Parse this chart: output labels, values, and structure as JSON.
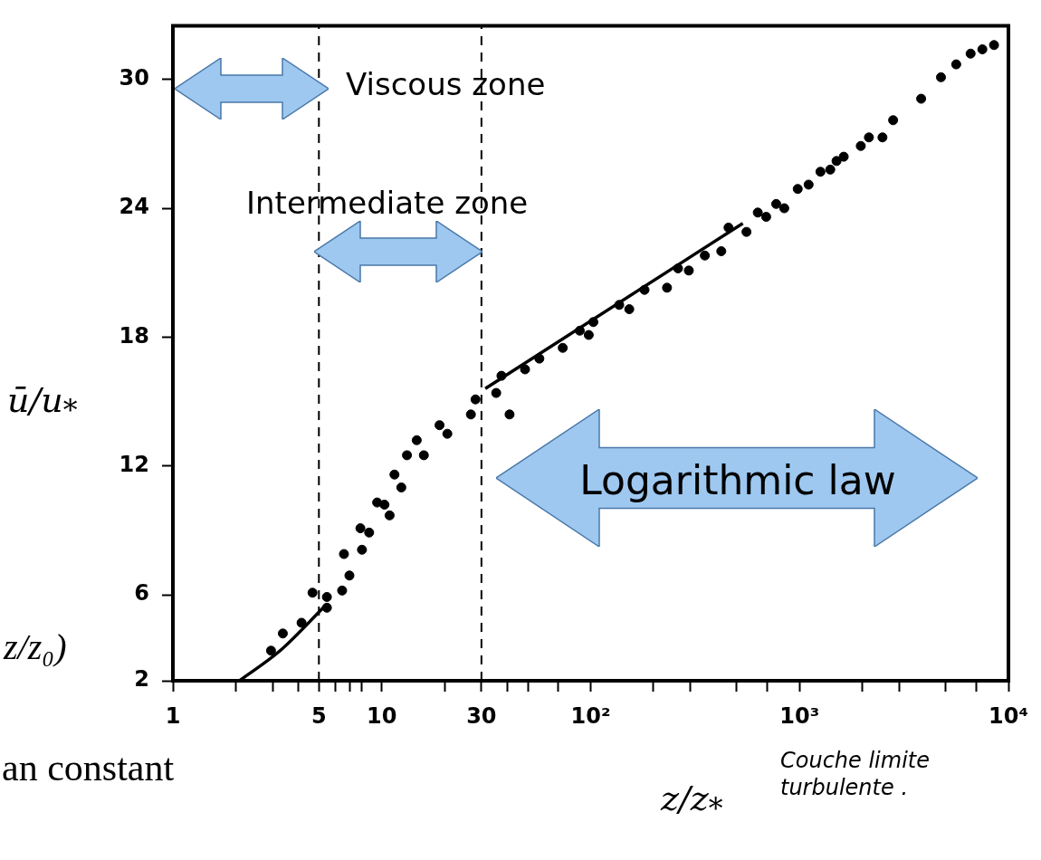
{
  "chart_data": {
    "type": "scatter",
    "xlabel": "z/z$_{*}$",
    "ylabel": "ū/u$_{*}$",
    "log": "x",
    "grid": false,
    "legend": false,
    "xlim": [
      1,
      10000
    ],
    "ylim": [
      2,
      32.5
    ],
    "xticks": [
      1,
      {
        "value": 2,
        "label": null
      },
      {
        "value": 3,
        "label": null
      },
      {
        "value": 4,
        "label": null
      },
      5,
      {
        "value": 6,
        "label": null
      },
      {
        "value": 7,
        "label": null
      },
      {
        "value": 8,
        "label": null
      },
      10,
      {
        "value": 20,
        "label": null
      },
      30,
      {
        "value": 40,
        "label": null
      },
      {
        "value": 50,
        "label": null
      },
      {
        "value": 70,
        "label": null
      },
      {
        "value": 100,
        "label": "10²"
      },
      {
        "value": 200,
        "label": null
      },
      {
        "value": 300,
        "label": null
      },
      {
        "value": 500,
        "label": null
      },
      {
        "value": 700,
        "label": null
      },
      {
        "value": 1000,
        "label": "10³"
      },
      {
        "value": 2000,
        "label": null
      },
      {
        "value": 3000,
        "label": null
      },
      {
        "value": 5000,
        "label": null
      },
      {
        "value": 7000,
        "label": null
      },
      {
        "value": 10000,
        "label": "10⁴"
      }
    ],
    "yticks": [
      2,
      6,
      12,
      18,
      24,
      30
    ],
    "ref_lines": [
      {
        "axis": "x",
        "value": 5,
        "line_style": "dashed",
        "color": "#000000"
      },
      {
        "axis": "x",
        "value": 30,
        "line_style": "dashed",
        "color": "#000000"
      }
    ],
    "annotations": [
      "Viscous zone",
      "Intermediate zone",
      "Logarithmic law",
      "Couche limite turbulente .",
      "an constant",
      "z/z₀)"
    ],
    "series": [
      {
        "color": "#000000",
        "marker": "circle",
        "x": [
          2.95,
          3.36,
          4.13,
          4.66,
          5.46,
          5.46,
          6.46,
          7.0,
          6.59,
          8.04,
          7.9,
          8.7,
          9.5,
          10.3,
          10.9,
          11.5,
          12.4,
          13.2,
          14.7,
          15.9,
          18.9,
          20.6,
          26.7,
          28.1,
          35.3,
          40.9,
          37.4,
          48.5,
          56.8,
          73.5,
          88.7,
          97.9,
          103,
          137,
          153,
          181,
          232,
          262,
          295,
          352,
          422,
          457,
          557,
          631,
          692,
          773,
          845,
          980,
          1105,
          1259,
          1403,
          1503,
          1627,
          1964,
          2148,
          2494,
          2805,
          3820,
          4753,
          5623,
          6590,
          7500,
          8530
        ],
        "values": [
          3.4,
          4.2,
          4.7,
          6.1,
          5.9,
          5.4,
          6.2,
          6.9,
          7.9,
          8.1,
          9.1,
          8.9,
          10.3,
          10.2,
          9.7,
          11.6,
          11.0,
          12.5,
          13.2,
          12.5,
          13.9,
          13.5,
          14.4,
          15.1,
          15.4,
          14.4,
          16.2,
          16.5,
          17.0,
          17.5,
          18.3,
          18.1,
          18.7,
          19.5,
          19.3,
          20.2,
          20.3,
          21.2,
          21.1,
          21.8,
          22.0,
          23.1,
          22.9,
          23.8,
          23.6,
          24.2,
          24.0,
          24.9,
          25.1,
          25.7,
          25.8,
          26.2,
          26.4,
          26.9,
          27.3,
          27.3,
          28.1,
          29.1,
          30.1,
          30.7,
          31.2,
          31.4,
          31.6
        ]
      },
      {
        "type": "line",
        "color": "#000000",
        "marker": "none",
        "x": [
          2.08,
          3.26,
          5.25
        ],
        "values": [
          2,
          3.4,
          5.4
        ]
      },
      {
        "type": "line",
        "color": "#000000",
        "marker": "none",
        "x": [
          31.3,
          535
        ],
        "values": [
          15.6,
          23.3
        ]
      }
    ]
  }
}
